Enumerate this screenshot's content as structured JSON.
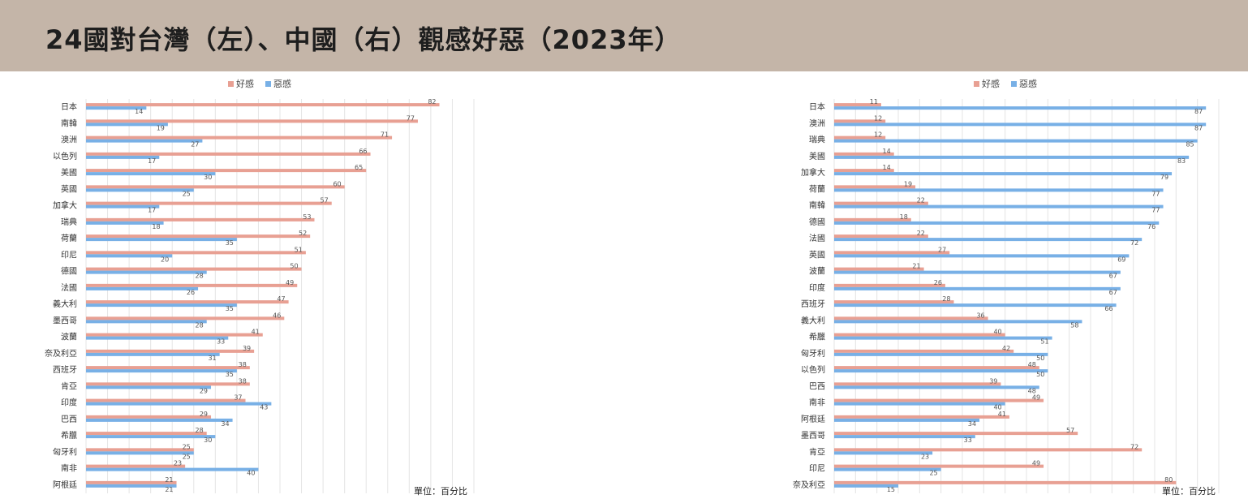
{
  "title": "24國對台灣（左）、中國（右）觀感好惡（2023年）",
  "colors": {
    "header_bg": "#c4b5a8",
    "favorable": "#e8a093",
    "unfavorable": "#78b0e6"
  },
  "chart_data": [
    {
      "type": "bar",
      "orientation": "horizontal",
      "title": "",
      "legend": [
        "好感",
        "惡感"
      ],
      "legend_position": "top-center",
      "unit_note": "單位：百分比",
      "grid": true,
      "xlim": [
        0,
        90
      ],
      "categories": [
        "日本",
        "南韓",
        "澳洲",
        "以色列",
        "美國",
        "英國",
        "加拿大",
        "瑞典",
        "荷蘭",
        "印尼",
        "德國",
        "法國",
        "義大利",
        "墨西哥",
        "波蘭",
        "奈及利亞",
        "西班牙",
        "肯亞",
        "印度",
        "巴西",
        "希臘",
        "匈牙利",
        "南非",
        "阿根廷"
      ],
      "series": [
        {
          "name": "好感",
          "values": [
            82,
            77,
            71,
            66,
            65,
            60,
            57,
            53,
            52,
            51,
            50,
            49,
            47,
            46,
            41,
            39,
            38,
            38,
            37,
            29,
            28,
            25,
            23,
            21
          ]
        },
        {
          "name": "惡感",
          "values": [
            14,
            19,
            27,
            17,
            30,
            25,
            17,
            18,
            35,
            20,
            28,
            26,
            35,
            28,
            33,
            31,
            35,
            29,
            43,
            34,
            30,
            25,
            40,
            21
          ]
        }
      ]
    },
    {
      "type": "bar",
      "orientation": "horizontal",
      "title": "",
      "legend": [
        "好感",
        "惡感"
      ],
      "legend_position": "top-center",
      "unit_note": "單位：百分比",
      "grid": true,
      "xlim": [
        0,
        90
      ],
      "categories": [
        "日本",
        "澳洲",
        "瑞典",
        "美國",
        "加拿大",
        "荷蘭",
        "南韓",
        "德國",
        "法國",
        "英國",
        "波蘭",
        "印度",
        "西班牙",
        "義大利",
        "希臘",
        "匈牙利",
        "以色列",
        "巴西",
        "南非",
        "阿根廷",
        "墨西哥",
        "肯亞",
        "印尼",
        "奈及利亞"
      ],
      "series": [
        {
          "name": "好感",
          "values": [
            11,
            12,
            12,
            14,
            14,
            19,
            22,
            18,
            22,
            27,
            21,
            26,
            28,
            36,
            40,
            42,
            48,
            39,
            49,
            41,
            57,
            72,
            49,
            80
          ]
        },
        {
          "name": "惡感",
          "values": [
            87,
            87,
            85,
            83,
            79,
            77,
            77,
            76,
            72,
            69,
            67,
            67,
            66,
            58,
            51,
            50,
            50,
            48,
            40,
            34,
            33,
            23,
            25,
            15
          ]
        }
      ]
    }
  ]
}
